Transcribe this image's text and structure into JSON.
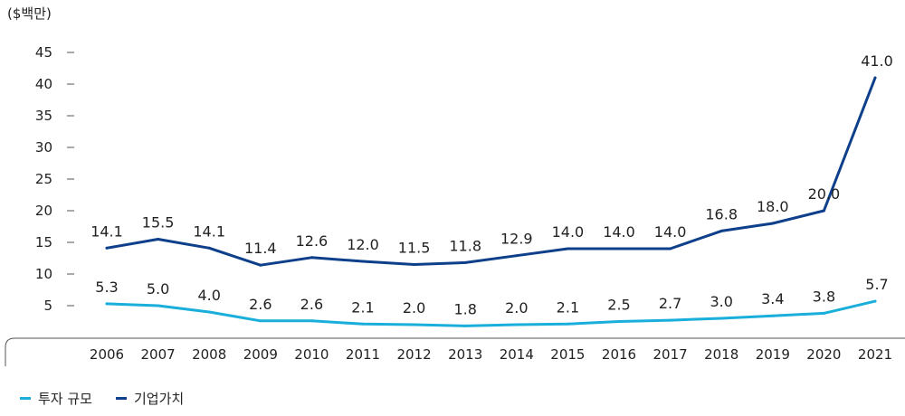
{
  "chart_data": {
    "type": "line",
    "unit_label": "($백만)",
    "x": [
      "2006",
      "2007",
      "2008",
      "2009",
      "2010",
      "2011",
      "2012",
      "2013",
      "2014",
      "2015",
      "2016",
      "2017",
      "2018",
      "2019",
      "2020",
      "2021"
    ],
    "y_ticks": [
      "5",
      "10",
      "15",
      "20",
      "25",
      "30",
      "35",
      "40",
      "45"
    ],
    "ylim": [
      0,
      45
    ],
    "series": [
      {
        "name": "투자 규모",
        "color": "#1aaedb",
        "values": [
          5.3,
          5.0,
          4.0,
          2.6,
          2.6,
          2.1,
          2.0,
          1.8,
          2.0,
          2.1,
          2.5,
          2.7,
          3.0,
          3.4,
          3.8,
          5.7
        ],
        "labels": [
          "5.3",
          "5.0",
          "4.0",
          "2.6",
          "2.6",
          "2.1",
          "2.0",
          "1.8",
          "2.0",
          "2.1",
          "2.5",
          "2.7",
          "3.0",
          "3.4",
          "3.8",
          "5.7"
        ]
      },
      {
        "name": "기업가치",
        "color": "#0d3f8a",
        "values": [
          14.1,
          15.5,
          14.1,
          11.4,
          12.6,
          12.0,
          11.5,
          11.8,
          12.9,
          14.0,
          14.0,
          14.0,
          16.8,
          18.0,
          20.0,
          41.0
        ],
        "labels": [
          "14.1",
          "15.5",
          "14.1",
          "11.4",
          "12.6",
          "12.0",
          "11.5",
          "11.8",
          "12.9",
          "14.0",
          "14.0",
          "14.0",
          "16.8",
          "18.0",
          "20.0",
          "41.0"
        ]
      }
    ],
    "legend_position": "bottom-left",
    "grid": false
  }
}
